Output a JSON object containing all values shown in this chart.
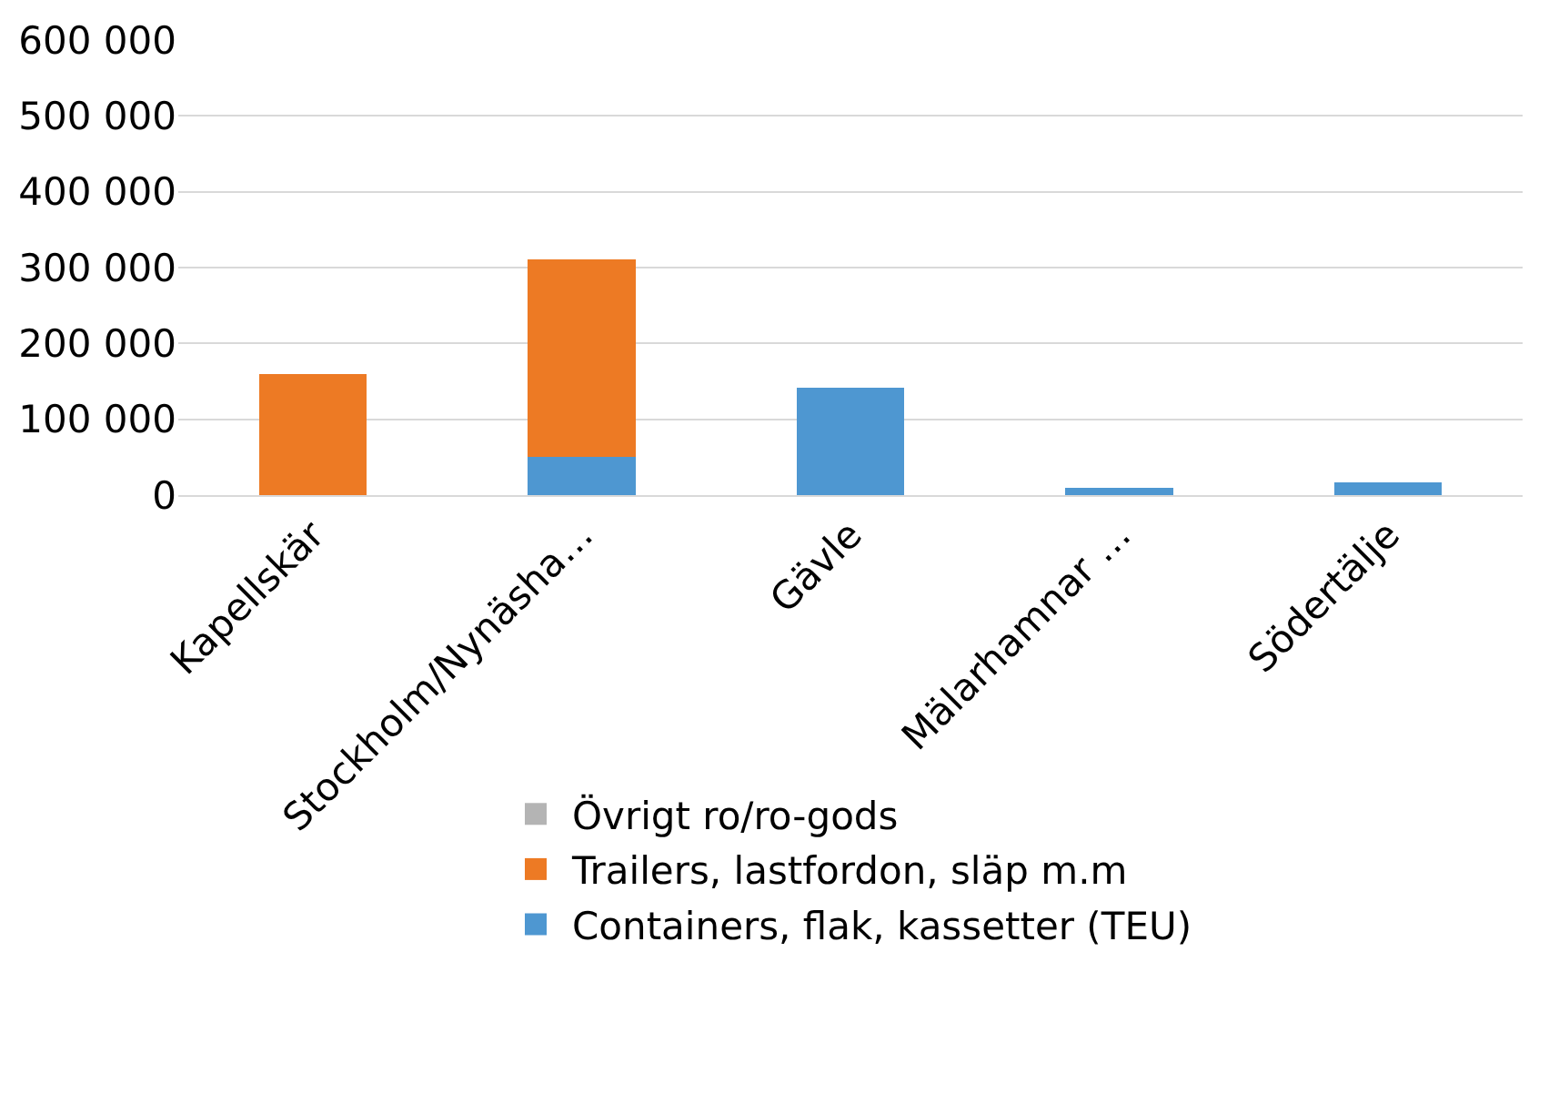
{
  "chart_data": {
    "type": "bar",
    "stacked": true,
    "categories": [
      "Kapellskär",
      "Stockholm/Nynäsha…",
      "Gävle",
      "Mälarhamnar …",
      "Södertälje"
    ],
    "series": [
      {
        "name": "Containers, flak, kassetter (TEU)",
        "color": "#4e97d1",
        "values": [
          0,
          50000,
          142000,
          10000,
          17000
        ]
      },
      {
        "name": "Trailers, lastfordon, släp m.m",
        "color": "#ed7a24",
        "values": [
          160000,
          261000,
          0,
          0,
          0
        ]
      },
      {
        "name": "Övrigt ro/ro-gods",
        "color": "#b4b4b4",
        "values": [
          0,
          0,
          0,
          0,
          0
        ]
      }
    ],
    "ylim": [
      0,
      600000
    ],
    "yticks": [
      {
        "value": 0,
        "label": "0"
      },
      {
        "value": 100000,
        "label": "100 000"
      },
      {
        "value": 200000,
        "label": "200 000"
      },
      {
        "value": 300000,
        "label": "300 000"
      },
      {
        "value": 400000,
        "label": "400 000"
      },
      {
        "value": 500000,
        "label": "500 000"
      },
      {
        "value": 600000,
        "label": "600 000"
      }
    ],
    "grid": "y",
    "legend": "bottom"
  }
}
